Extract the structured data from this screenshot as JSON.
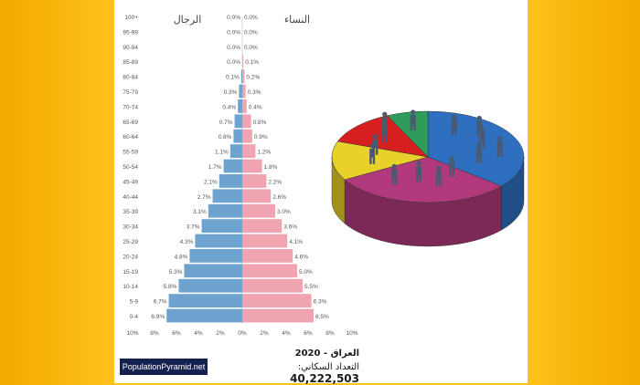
{
  "chart_data": {
    "type": "bar",
    "subtype": "population-pyramid",
    "categories": [
      "0-4",
      "5-9",
      "10-14",
      "15-19",
      "20-24",
      "25-29",
      "30-34",
      "35-39",
      "40-44",
      "45-49",
      "50-54",
      "55-59",
      "60-64",
      "65-69",
      "70-74",
      "75-79",
      "80-84",
      "85-89",
      "90-94",
      "95-99",
      "100+"
    ],
    "series": [
      {
        "name": "الرجال",
        "color": "#6ea3d0",
        "values": [
          6.9,
          6.7,
          5.8,
          5.3,
          4.8,
          4.3,
          3.7,
          3.1,
          2.7,
          2.1,
          1.7,
          1.1,
          0.8,
          0.7,
          0.4,
          0.3,
          0.1,
          0.0,
          0.0,
          0.0,
          0.0
        ],
        "value_labels": [
          "6.9%",
          "6.7%",
          "5.8%",
          "5.3%",
          "4.8%",
          "4.3%",
          "3.7%",
          "3.1%",
          "2.7%",
          "2.1%",
          "1.7%",
          "1.1%",
          "0.8%",
          "0.7%",
          "0.4%",
          "0.3%",
          "0.1%",
          "0.0%",
          "0.0%",
          "0.0%",
          "0.0%"
        ]
      },
      {
        "name": "النساء",
        "color": "#f0a3b1",
        "values": [
          6.5,
          6.3,
          5.5,
          5.0,
          4.6,
          4.1,
          3.6,
          3.0,
          2.6,
          2.2,
          1.8,
          1.2,
          0.9,
          0.8,
          0.4,
          0.3,
          0.2,
          0.1,
          0.0,
          0.0,
          0.0
        ],
        "value_labels": [
          "6.5%",
          "6.3%",
          "5.5%",
          "5.0%",
          "4.6%",
          "4.1%",
          "3.6%",
          "3.0%",
          "2.6%",
          "2.2%",
          "1.8%",
          "1.2%",
          "0.9%",
          "0.8%",
          "0.4%",
          "0.3%",
          "0.2%",
          "0.1%",
          "0.0%",
          "0.0%",
          "0.0%"
        ]
      }
    ],
    "xlim": [
      -10,
      10
    ],
    "x_ticks": [
      "10%",
      "8%",
      "6%",
      "4%",
      "2%",
      "0%",
      "2%",
      "4%",
      "6%",
      "8%",
      "10%"
    ],
    "grid": false
  },
  "caption": {
    "title": "العراق - 2020",
    "population_label": "التعداد السكاني:",
    "population_value": "40,222,503"
  },
  "brand": "PopulationPyramid.net",
  "colors": {
    "men": "#6ea3d0",
    "women": "#f0a3b1",
    "background": "#ffc21a"
  },
  "decoration": {
    "pie_slice_colors": [
      "#2e6fbf",
      "#b23a7c",
      "#e8d12a",
      "#d81f1f",
      "#2f9c5c"
    ],
    "icon": "people-figures-icon"
  }
}
